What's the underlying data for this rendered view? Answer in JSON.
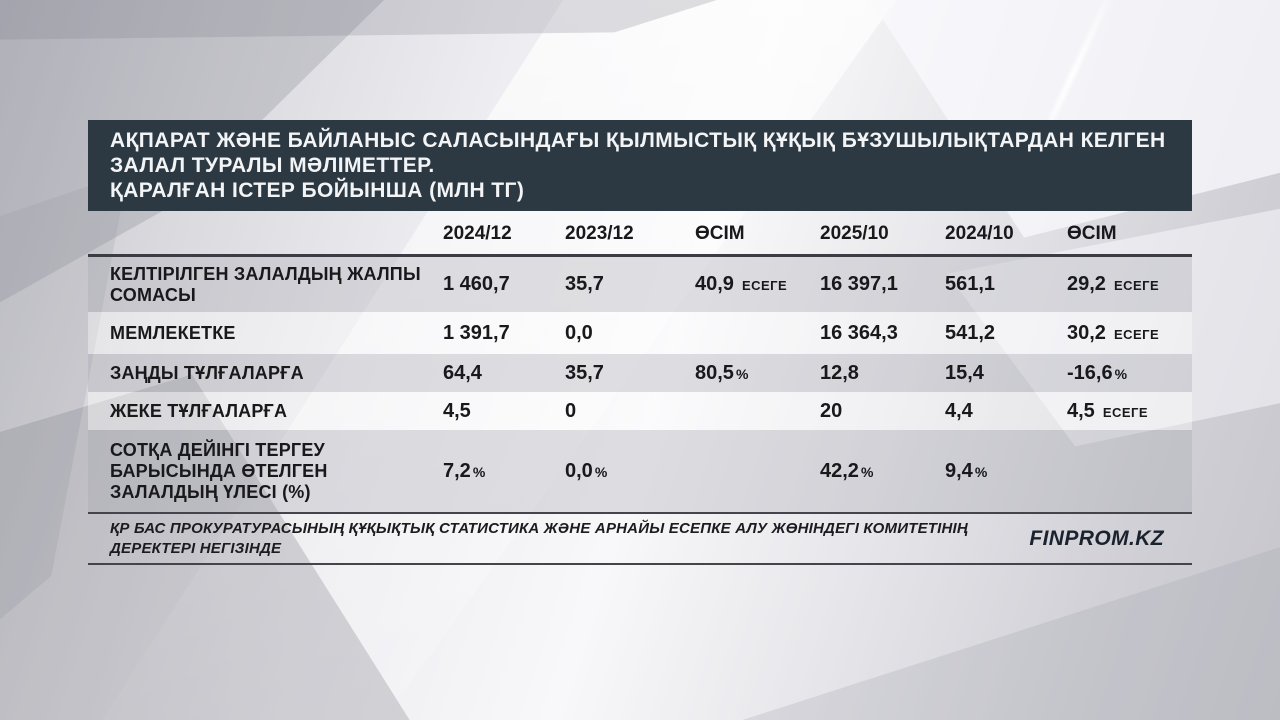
{
  "header": {
    "title_main": "АҚПАРАТ ЖӘНЕ БАЙЛАНЫС САЛАСЫНДАҒЫ ҚЫЛМЫСТЫҚ ҚҰҚЫҚ БҰЗУШЫЛЫҚТАРДАН КЕЛГЕН ЗАЛАЛ ТУРАЛЫ МӘЛІМЕТТЕР.",
    "title_sub": "ҚАРАЛҒАН ІСТЕР БОЙЫНША (МЛН ТГ)"
  },
  "chart_data": {
    "type": "table",
    "title": "АҚПАРАТ ЖӘНЕ БАЙЛАНЫС САЛАСЫНДАҒЫ ҚЫЛМЫСТЫҚ ҚҰҚЫҚ БҰЗУШЫЛЫҚТАРДАН КЕЛГЕН ЗАЛАЛ ТУРАЛЫ МӘЛІМЕТТЕР. ҚАРАЛҒАН ІСТЕР БОЙЫНША (МЛН ТГ)",
    "columns": [
      "2024/12",
      "2023/12",
      "ӨСІМ",
      "2025/10",
      "2024/10",
      "ӨСІМ"
    ],
    "rows": [
      {
        "label": "КЕЛТІРІЛГЕН ЗАЛАЛДЫҢ ЖАЛПЫ СОМАСЫ",
        "cells": [
          {
            "v": "1 460,7",
            "suffix": ""
          },
          {
            "v": "35,7",
            "suffix": ""
          },
          {
            "v": "40,9",
            "suffix": "ЕСЕГЕ"
          },
          {
            "v": "16 397,1",
            "suffix": ""
          },
          {
            "v": "561,1",
            "suffix": ""
          },
          {
            "v": "29,2",
            "suffix": "ЕСЕГЕ"
          }
        ]
      },
      {
        "label": "МЕМЛЕКЕТКЕ",
        "cells": [
          {
            "v": "1 391,7",
            "suffix": ""
          },
          {
            "v": "0,0",
            "suffix": ""
          },
          {
            "v": "",
            "suffix": ""
          },
          {
            "v": "16 364,3",
            "suffix": ""
          },
          {
            "v": "541,2",
            "suffix": ""
          },
          {
            "v": "30,2",
            "suffix": "ЕСЕГЕ"
          }
        ]
      },
      {
        "label": "ЗАҢДЫ ТҰЛҒАЛАРҒА",
        "cells": [
          {
            "v": "64,4",
            "suffix": ""
          },
          {
            "v": "35,7",
            "suffix": ""
          },
          {
            "v": "80,5",
            "suffix": "%"
          },
          {
            "v": "12,8",
            "suffix": ""
          },
          {
            "v": "15,4",
            "suffix": ""
          },
          {
            "v": "-16,6",
            "suffix": "%"
          }
        ]
      },
      {
        "label": "ЖЕКЕ ТҰЛҒАЛАРҒА",
        "cells": [
          {
            "v": "4,5",
            "suffix": ""
          },
          {
            "v": "0",
            "suffix": ""
          },
          {
            "v": "",
            "suffix": ""
          },
          {
            "v": "20",
            "suffix": ""
          },
          {
            "v": "4,4",
            "suffix": ""
          },
          {
            "v": "4,5",
            "suffix": "ЕСЕГЕ"
          }
        ]
      },
      {
        "label": "СОТҚА ДЕЙІНГІ ТЕРГЕУ БАРЫСЫНДА ӨТЕЛГЕН ЗАЛАЛДЫҢ ҮЛЕСІ (%)",
        "cells": [
          {
            "v": "7,2",
            "suffix": "%"
          },
          {
            "v": "0,0",
            "suffix": "%"
          },
          {
            "v": "",
            "suffix": ""
          },
          {
            "v": "42,2",
            "suffix": "%"
          },
          {
            "v": "9,4",
            "suffix": "%"
          },
          {
            "v": "",
            "suffix": ""
          }
        ]
      }
    ]
  },
  "footer": {
    "source": "ҚР БАС ПРОКУРАТУРАСЫНЫҢ ҚҰҚЫҚТЫҚ СТАТИСТИКА ЖӘНЕ АРНАЙЫ ЕСЕПКЕ АЛУ ЖӨНІНДЕГІ КОМИТЕТІНІҢ ДЕРЕКТЕРІ НЕГІЗІНДЕ",
    "brand": "FINPROM.KZ"
  },
  "colors": {
    "title_bg": "#2c3842",
    "text": "#19191c",
    "rule": "#3c3c44",
    "band_dark": "rgba(164,164,175,0.32)",
    "band_light": "rgba(255,255,255,0.38)"
  }
}
